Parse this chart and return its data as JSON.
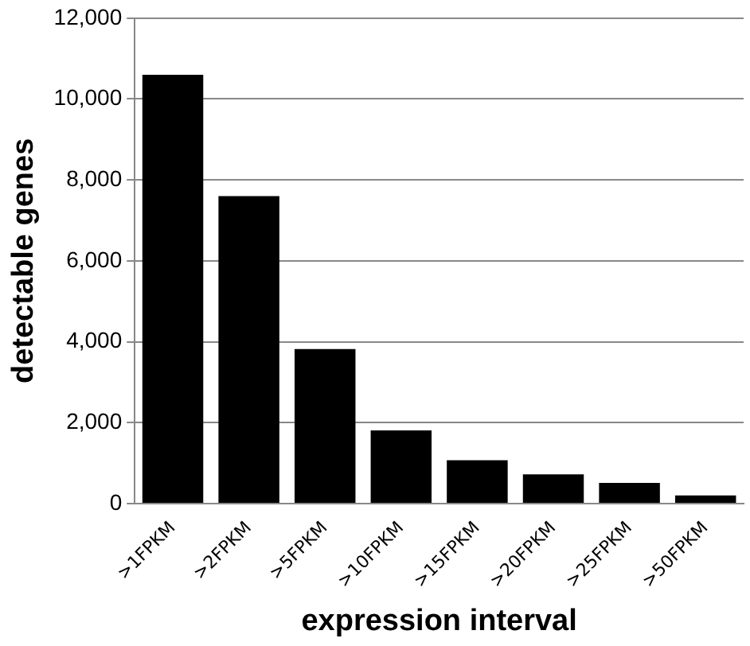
{
  "chart_data": {
    "type": "bar",
    "xlabel": "expression interval",
    "ylabel": "detectable genes",
    "categories": [
      ">1FPKM",
      ">2FPKM",
      ">5FPKM",
      ">10FPKM",
      ">15FPKM",
      ">20FPKM",
      ">25FPKM",
      ">50FPKM"
    ],
    "values": [
      10600,
      7600,
      3820,
      1810,
      1070,
      720,
      510,
      200
    ],
    "color": "#000000",
    "ylim": [
      0,
      12000
    ],
    "yticks": [
      {
        "value": 0,
        "label": "0"
      },
      {
        "value": 2000,
        "label": "2,000"
      },
      {
        "value": 4000,
        "label": "4,000"
      },
      {
        "value": 6000,
        "label": "6,000"
      },
      {
        "value": 8000,
        "label": "8,000"
      },
      {
        "value": 10000,
        "label": "10,000"
      },
      {
        "value": 12000,
        "label": "12,000"
      }
    ],
    "grid": "y",
    "legend": false
  }
}
